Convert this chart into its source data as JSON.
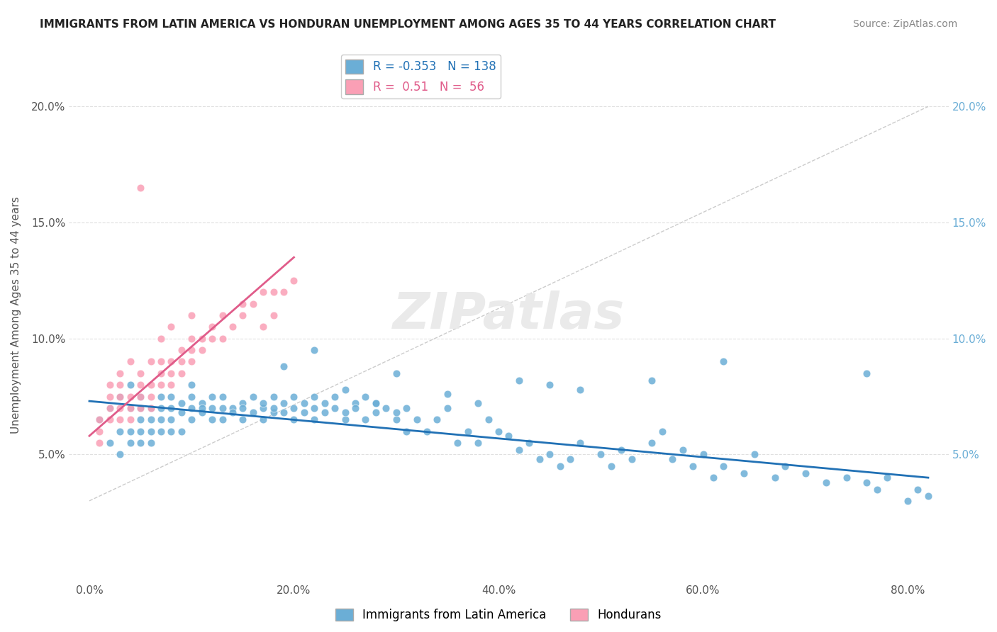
{
  "title": "IMMIGRANTS FROM LATIN AMERICA VS HONDURAN UNEMPLOYMENT AMONG AGES 35 TO 44 YEARS CORRELATION CHART",
  "source": "Source: ZipAtlas.com",
  "ylabel": "Unemployment Among Ages 35 to 44 years",
  "xlabel_ticks": [
    "0.0%",
    "20.0%",
    "40.0%",
    "60.0%",
    "80.0%"
  ],
  "ylabel_ticks": [
    "5.0%",
    "10.0%",
    "15.0%",
    "20.0%"
  ],
  "xlim": [
    -0.02,
    0.84
  ],
  "ylim": [
    -0.005,
    0.225
  ],
  "blue_R": -0.353,
  "blue_N": 138,
  "pink_R": 0.51,
  "pink_N": 56,
  "blue_color": "#6baed6",
  "pink_color": "#fa9fb5",
  "blue_line_color": "#2171b5",
  "pink_line_color": "#e05c8a",
  "legend_label_blue": "Immigrants from Latin America",
  "legend_label_pink": "Hondurans",
  "watermark": "ZIPatlas",
  "background_color": "#ffffff",
  "grid_color": "#e0e0e0",
  "blue_scatter_x": [
    0.01,
    0.02,
    0.02,
    0.03,
    0.03,
    0.03,
    0.04,
    0.04,
    0.04,
    0.04,
    0.05,
    0.05,
    0.05,
    0.05,
    0.05,
    0.06,
    0.06,
    0.06,
    0.06,
    0.07,
    0.07,
    0.07,
    0.07,
    0.08,
    0.08,
    0.08,
    0.08,
    0.09,
    0.09,
    0.09,
    0.1,
    0.1,
    0.1,
    0.1,
    0.11,
    0.11,
    0.11,
    0.12,
    0.12,
    0.12,
    0.13,
    0.13,
    0.13,
    0.14,
    0.14,
    0.15,
    0.15,
    0.15,
    0.16,
    0.16,
    0.17,
    0.17,
    0.17,
    0.18,
    0.18,
    0.18,
    0.19,
    0.19,
    0.2,
    0.2,
    0.2,
    0.21,
    0.21,
    0.22,
    0.22,
    0.22,
    0.23,
    0.23,
    0.24,
    0.24,
    0.25,
    0.25,
    0.26,
    0.26,
    0.27,
    0.27,
    0.28,
    0.28,
    0.29,
    0.3,
    0.3,
    0.31,
    0.31,
    0.32,
    0.33,
    0.34,
    0.35,
    0.36,
    0.37,
    0.38,
    0.39,
    0.4,
    0.41,
    0.42,
    0.43,
    0.44,
    0.45,
    0.46,
    0.47,
    0.48,
    0.5,
    0.51,
    0.52,
    0.53,
    0.55,
    0.56,
    0.57,
    0.58,
    0.59,
    0.6,
    0.61,
    0.62,
    0.64,
    0.65,
    0.67,
    0.68,
    0.7,
    0.72,
    0.74,
    0.76,
    0.77,
    0.78,
    0.8,
    0.81,
    0.82,
    0.76,
    0.62,
    0.45,
    0.3,
    0.48,
    0.55,
    0.38,
    0.25,
    0.42,
    0.35,
    0.19,
    0.28,
    0.22
  ],
  "blue_scatter_y": [
    0.065,
    0.055,
    0.07,
    0.06,
    0.075,
    0.05,
    0.07,
    0.06,
    0.055,
    0.08,
    0.065,
    0.07,
    0.055,
    0.06,
    0.075,
    0.065,
    0.07,
    0.06,
    0.055,
    0.07,
    0.065,
    0.075,
    0.06,
    0.07,
    0.065,
    0.06,
    0.075,
    0.068,
    0.072,
    0.06,
    0.07,
    0.075,
    0.065,
    0.08,
    0.072,
    0.068,
    0.07,
    0.075,
    0.065,
    0.07,
    0.07,
    0.075,
    0.065,
    0.07,
    0.068,
    0.072,
    0.065,
    0.07,
    0.075,
    0.068,
    0.07,
    0.065,
    0.072,
    0.068,
    0.075,
    0.07,
    0.068,
    0.072,
    0.065,
    0.07,
    0.075,
    0.068,
    0.072,
    0.07,
    0.075,
    0.065,
    0.068,
    0.072,
    0.07,
    0.075,
    0.065,
    0.068,
    0.072,
    0.07,
    0.075,
    0.065,
    0.068,
    0.072,
    0.07,
    0.065,
    0.068,
    0.06,
    0.07,
    0.065,
    0.06,
    0.065,
    0.07,
    0.055,
    0.06,
    0.055,
    0.065,
    0.06,
    0.058,
    0.052,
    0.055,
    0.048,
    0.05,
    0.045,
    0.048,
    0.055,
    0.05,
    0.045,
    0.052,
    0.048,
    0.055,
    0.06,
    0.048,
    0.052,
    0.045,
    0.05,
    0.04,
    0.045,
    0.042,
    0.05,
    0.04,
    0.045,
    0.042,
    0.038,
    0.04,
    0.038,
    0.035,
    0.04,
    0.03,
    0.035,
    0.032,
    0.085,
    0.09,
    0.08,
    0.085,
    0.078,
    0.082,
    0.072,
    0.078,
    0.082,
    0.076,
    0.088,
    0.072,
    0.095
  ],
  "pink_scatter_x": [
    0.01,
    0.01,
    0.01,
    0.02,
    0.02,
    0.02,
    0.02,
    0.03,
    0.03,
    0.03,
    0.03,
    0.03,
    0.04,
    0.04,
    0.04,
    0.04,
    0.05,
    0.05,
    0.05,
    0.05,
    0.05,
    0.06,
    0.06,
    0.06,
    0.06,
    0.07,
    0.07,
    0.07,
    0.07,
    0.08,
    0.08,
    0.08,
    0.08,
    0.09,
    0.09,
    0.09,
    0.1,
    0.1,
    0.1,
    0.1,
    0.11,
    0.11,
    0.12,
    0.12,
    0.13,
    0.13,
    0.14,
    0.15,
    0.15,
    0.16,
    0.17,
    0.17,
    0.18,
    0.18,
    0.19,
    0.2
  ],
  "pink_scatter_y": [
    0.055,
    0.065,
    0.06,
    0.07,
    0.065,
    0.075,
    0.08,
    0.065,
    0.07,
    0.075,
    0.08,
    0.085,
    0.065,
    0.07,
    0.075,
    0.09,
    0.07,
    0.075,
    0.08,
    0.085,
    0.165,
    0.07,
    0.075,
    0.08,
    0.09,
    0.08,
    0.085,
    0.09,
    0.1,
    0.08,
    0.085,
    0.09,
    0.105,
    0.085,
    0.09,
    0.095,
    0.09,
    0.095,
    0.1,
    0.11,
    0.095,
    0.1,
    0.1,
    0.105,
    0.1,
    0.11,
    0.105,
    0.11,
    0.115,
    0.115,
    0.105,
    0.12,
    0.11,
    0.12,
    0.12,
    0.125
  ],
  "blue_trendline_x": [
    0.0,
    0.82
  ],
  "blue_trendline_y": [
    0.073,
    0.04
  ],
  "pink_trendline_x": [
    0.0,
    0.2
  ],
  "pink_trendline_y": [
    0.058,
    0.135
  ],
  "ref_line_x": [
    0.0,
    0.82
  ],
  "ref_line_y": [
    0.03,
    0.2
  ]
}
